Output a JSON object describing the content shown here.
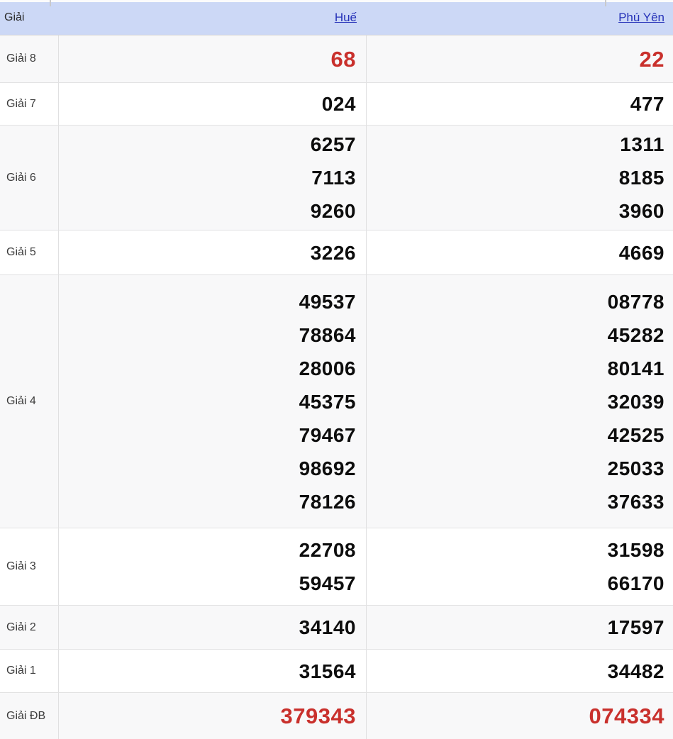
{
  "colors": {
    "header_bg": "#ccd8f6",
    "link_blue": "#2531b8",
    "highlight_red": "#c9302c",
    "stripe_gray": "#f8f8f9"
  },
  "table": {
    "header": {
      "prize": "Giải",
      "hue": "Huế",
      "phuyen": "Phú Yên"
    },
    "rows": [
      {
        "label": "Giải 8",
        "hue": [
          "68"
        ],
        "phuyen": [
          "22"
        ]
      },
      {
        "label": "Giải 7",
        "hue": [
          "024"
        ],
        "phuyen": [
          "477"
        ]
      },
      {
        "label": "Giải 6",
        "hue": [
          "6257",
          "7113",
          "9260"
        ],
        "phuyen": [
          "1311",
          "8185",
          "3960"
        ]
      },
      {
        "label": "Giải 5",
        "hue": [
          "3226"
        ],
        "phuyen": [
          "4669"
        ]
      },
      {
        "label": "Giải 4",
        "hue": [
          "49537",
          "78864",
          "28006",
          "45375",
          "79467",
          "98692",
          "78126"
        ],
        "phuyen": [
          "08778",
          "45282",
          "80141",
          "32039",
          "42525",
          "25033",
          "37633"
        ]
      },
      {
        "label": "Giải 3",
        "hue": [
          "22708",
          "59457"
        ],
        "phuyen": [
          "31598",
          "66170"
        ]
      },
      {
        "label": "Giải 2",
        "hue": [
          "34140"
        ],
        "phuyen": [
          "17597"
        ]
      },
      {
        "label": "Giải 1",
        "hue": [
          "31564"
        ],
        "phuyen": [
          "34482"
        ]
      },
      {
        "label": "Giải ĐB",
        "hue": [
          "379343"
        ],
        "phuyen": [
          "074334"
        ]
      }
    ]
  }
}
